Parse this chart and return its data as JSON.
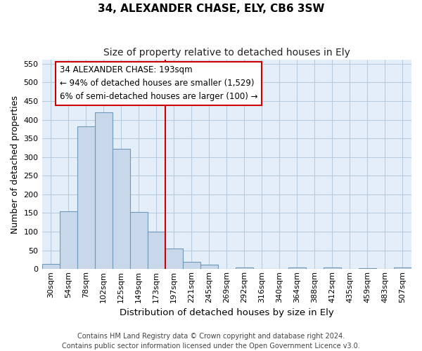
{
  "title1": "34, ALEXANDER CHASE, ELY, CB6 3SW",
  "title2": "Size of property relative to detached houses in Ely",
  "xlabel": "Distribution of detached houses by size in Ely",
  "ylabel": "Number of detached properties",
  "bar_color": "#c8d8ea",
  "bar_edge_color": "#7098b8",
  "grid_color": "#b8cce0",
  "background_color": "#e4eef8",
  "line_color": "#cc0000",
  "categories": [
    "30sqm",
    "54sqm",
    "78sqm",
    "102sqm",
    "125sqm",
    "149sqm",
    "173sqm",
    "197sqm",
    "221sqm",
    "245sqm",
    "269sqm",
    "292sqm",
    "316sqm",
    "340sqm",
    "364sqm",
    "388sqm",
    "412sqm",
    "435sqm",
    "459sqm",
    "483sqm",
    "507sqm"
  ],
  "values": [
    13,
    155,
    382,
    420,
    322,
    152,
    100,
    55,
    20,
    11,
    0,
    5,
    0,
    0,
    4,
    0,
    4,
    0,
    2,
    0,
    4
  ],
  "redline_index": 7,
  "ylim": [
    0,
    560
  ],
  "yticks": [
    0,
    50,
    100,
    150,
    200,
    250,
    300,
    350,
    400,
    450,
    500,
    550
  ],
  "ann_line1": "34 ALEXANDER CHASE: 193sqm",
  "ann_line2": "← 94% of detached houses are smaller (1,529)",
  "ann_line3": "6% of semi-detached houses are larger (100) →",
  "footer1": "Contains HM Land Registry data © Crown copyright and database right 2024.",
  "footer2": "Contains public sector information licensed under the Open Government Licence v3.0.",
  "title1_fontsize": 11,
  "title2_fontsize": 10,
  "xlabel_fontsize": 9.5,
  "ylabel_fontsize": 9,
  "tick_fontsize": 8,
  "ann_fontsize": 8.5,
  "footer_fontsize": 7
}
